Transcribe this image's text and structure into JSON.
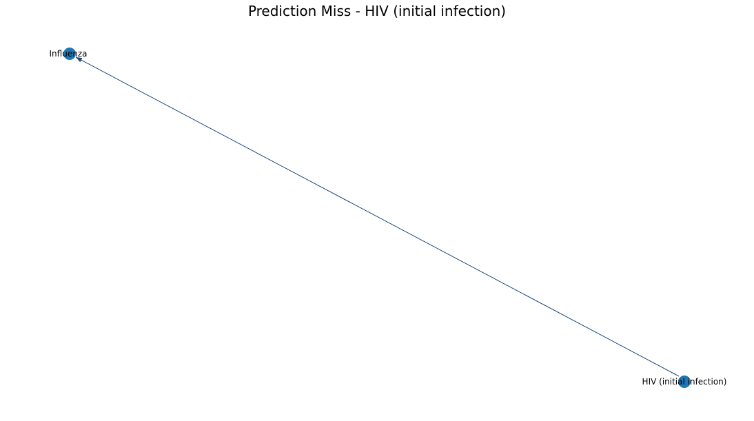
{
  "title": "Prediction Miss - HIV (initial infection)",
  "colors": {
    "node": "#1f77b4",
    "edge": "#1d4a7a",
    "text": "#000000",
    "background": "#ffffff"
  },
  "nodes": [
    {
      "id": "influenza",
      "label": "Influenza"
    },
    {
      "id": "hiv",
      "label": "HIV (initial infection)"
    }
  ],
  "edges": [
    {
      "from": "hiv",
      "to": "influenza",
      "directed": true
    }
  ]
}
